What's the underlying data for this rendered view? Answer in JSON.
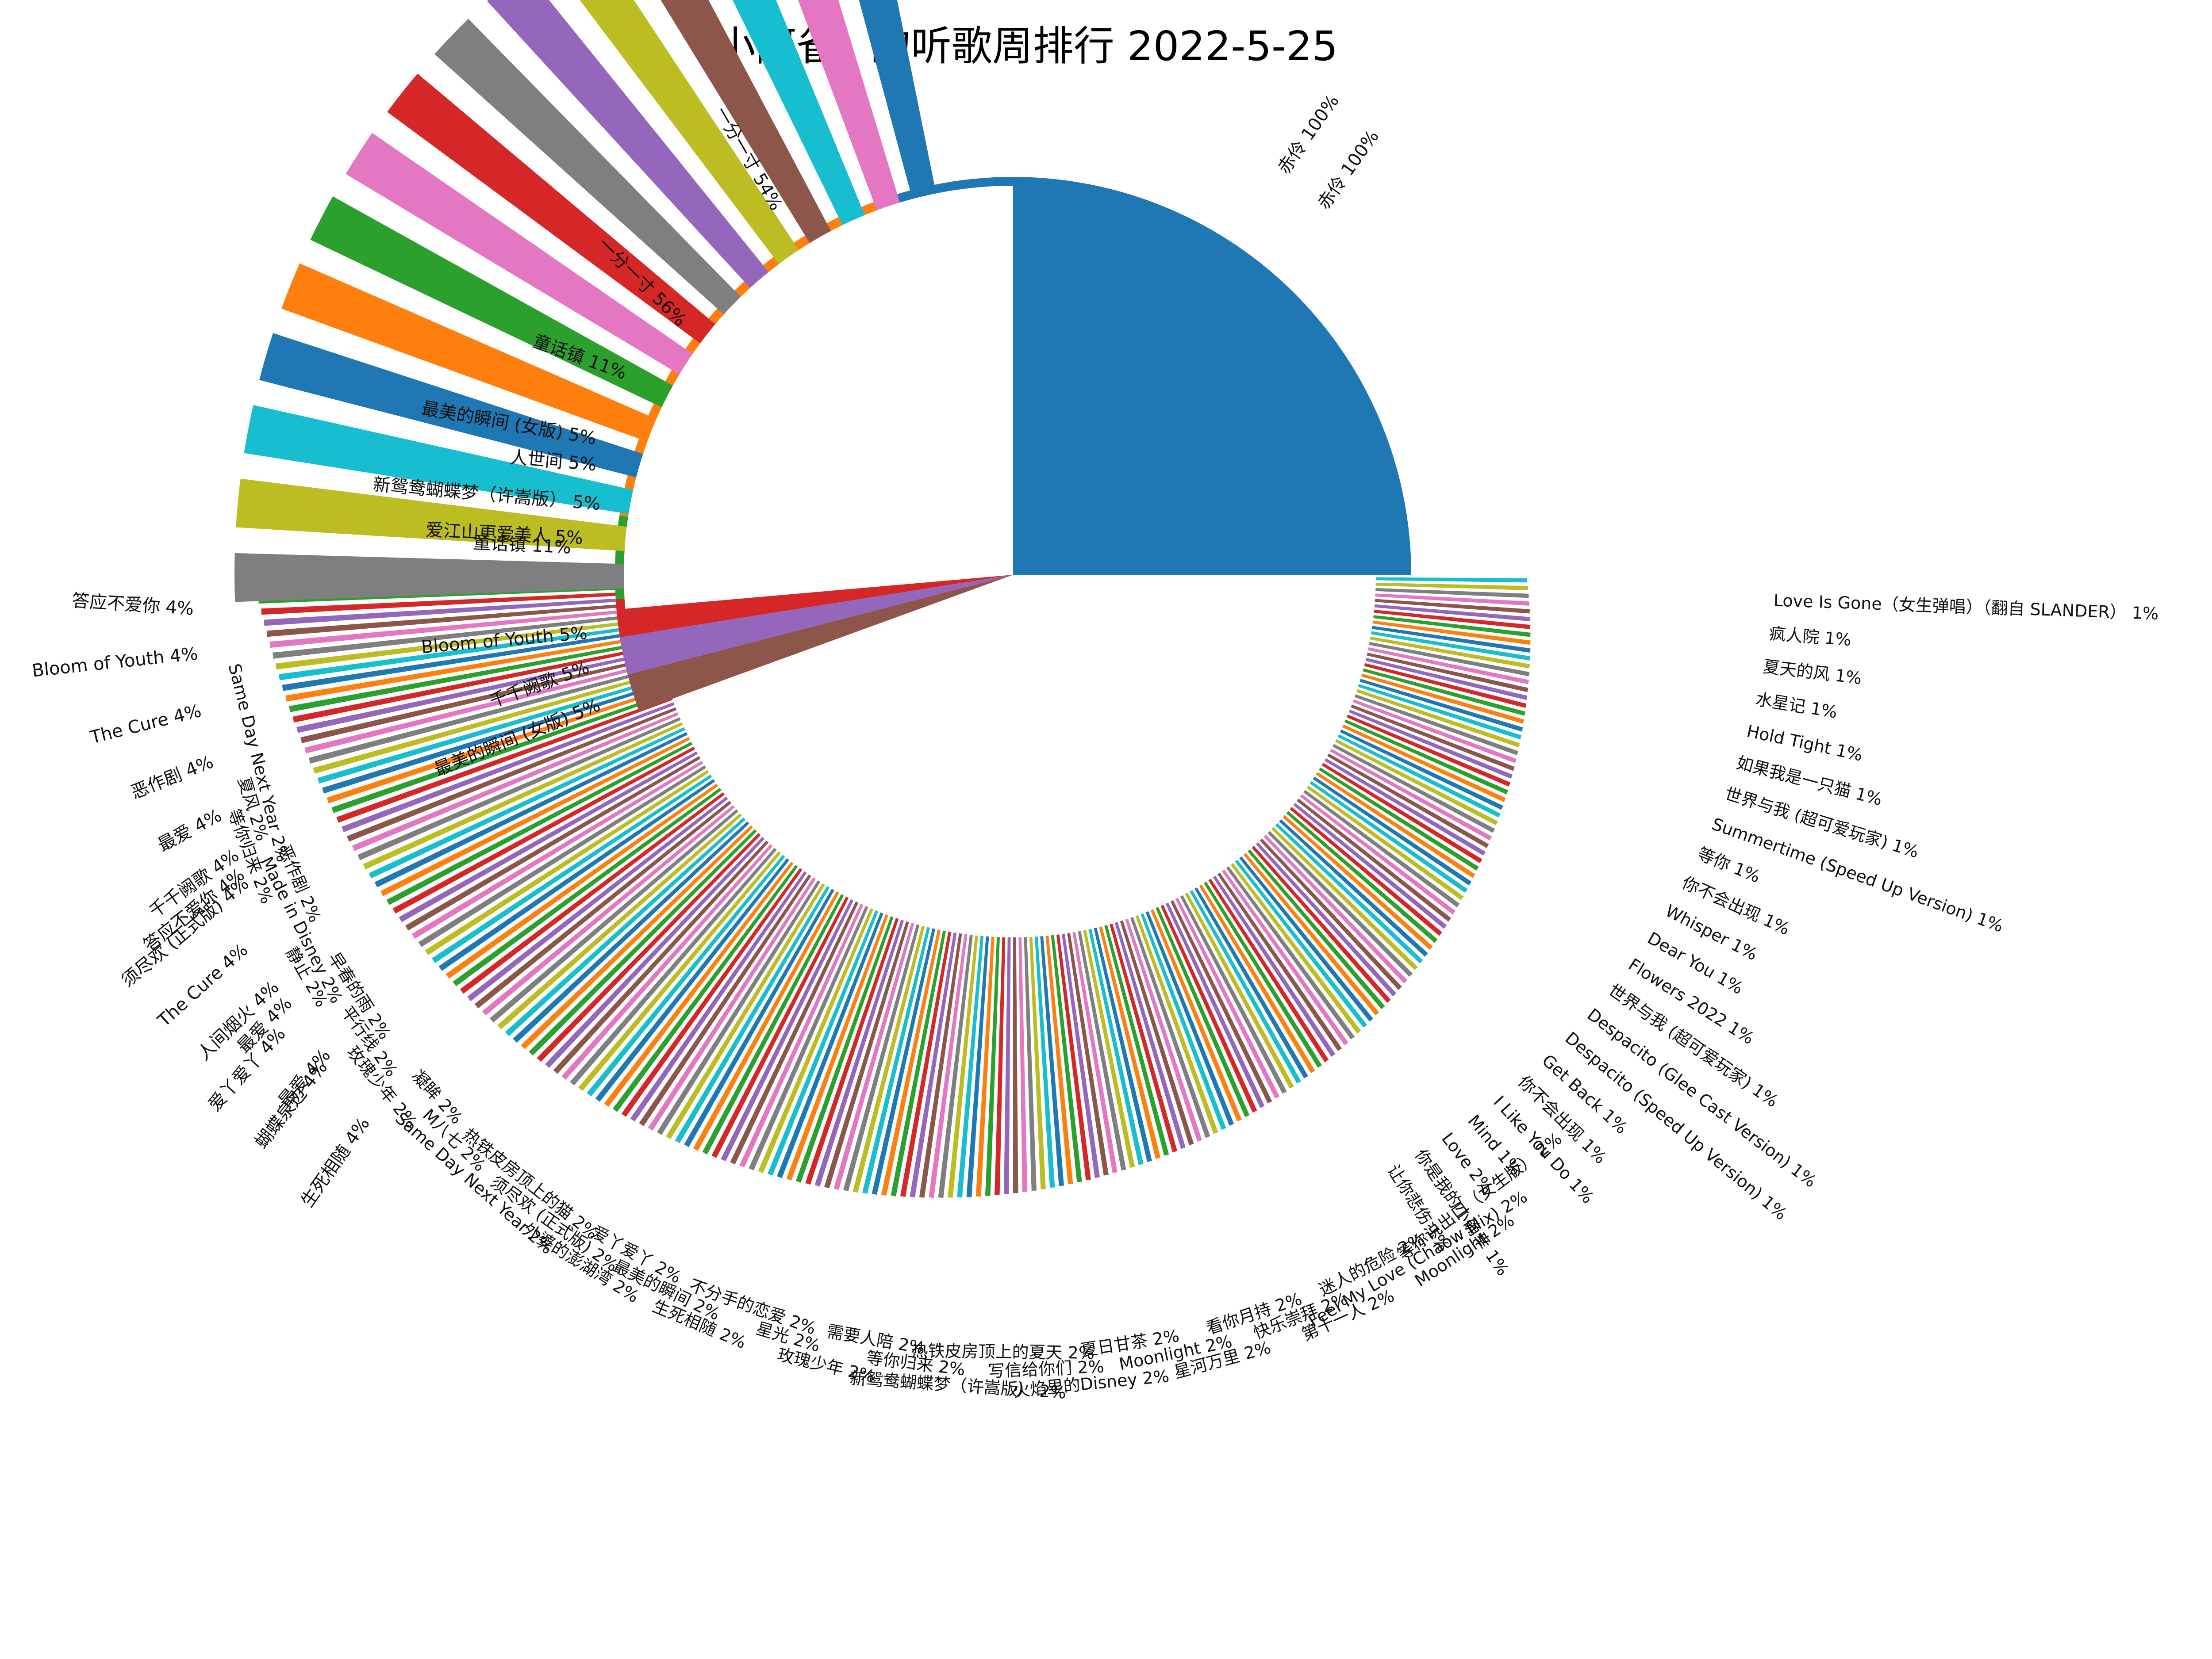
{
  "chart_data": {
    "type": "pie",
    "title": "小阿雀_ 的听歌周排行 2022-5-25",
    "note_layout": "two overlapping pies sharing a center; upper wedges show top songs, lower half is a dense fan of many small wedges",
    "top_wedges": [
      {
        "label": "赤伶 100%",
        "value": 100,
        "color": "#1f77b4"
      },
      {
        "label": "一分一寸 56%",
        "value": 56,
        "color": "#ff7f0e"
      },
      {
        "label": "童话镇 11%",
        "value": 11,
        "color": "#2ca02c"
      },
      {
        "label": "最美的瞬间 (女版) 5%",
        "value": 5,
        "color": "#d62728"
      },
      {
        "label": "人世间 5%",
        "value": 5,
        "color": "#9467bd"
      },
      {
        "label": "新鸳鸯蝴蝶梦（许嵩版） 5%",
        "value": 5,
        "color": "#8c564b"
      }
    ],
    "outer_labels_top": [
      "赤伶 100%",
      "赤伶 100%",
      "一分一寸 54%",
      "一分一寸 56%",
      "童话镇 11%",
      "最美的瞬间 (女版) 5%",
      "人世间 5%",
      "新鸳鸯蝴蝶梦（许嵩版） 5%",
      "爱江山更爱美人 5%",
      "童话镇 11%",
      "Bloom of Youth 5%",
      "千千阙歌 5%",
      "最美的瞬间 (女版) 5%"
    ],
    "left_exploded_wedges": [
      {
        "label": "答应不爱你 4%",
        "value": 4,
        "color": "#7f7f7f"
      },
      {
        "label": "Bloom of Youth 4%",
        "value": 4,
        "color": "#bcbd22"
      },
      {
        "label": "The Cure 4%",
        "value": 4,
        "color": "#17becf"
      },
      {
        "label": "恶作剧 4%",
        "value": 4,
        "color": "#1f77b4"
      },
      {
        "label": "最爱 4%",
        "value": 4,
        "color": "#ff7f0e"
      },
      {
        "label": "千千阙歌 4%",
        "value": 4,
        "color": "#2ca02c"
      },
      {
        "label": "答应不爱你 4%",
        "value": 4,
        "color": "#e377c2"
      },
      {
        "label": "须尽欢 (正式版) 4%",
        "value": 4,
        "color": "#d62728"
      },
      {
        "label": "The Cure 4%",
        "value": 4,
        "color": "#7f7f7f"
      },
      {
        "label": "人间烟火 4%",
        "value": 4,
        "color": "#9467bd"
      },
      {
        "label": "最爱 4%",
        "value": 4,
        "color": "#bcbd22"
      },
      {
        "label": "爱丫爱丫 4%",
        "value": 4,
        "color": "#8c564b"
      },
      {
        "label": "最爱 4%",
        "value": 4,
        "color": "#17becf"
      },
      {
        "label": "蝴蝶泉边 4%",
        "value": 4,
        "color": "#e377c2"
      },
      {
        "label": "生死相随 4%",
        "value": 4,
        "color": "#1f77b4"
      }
    ],
    "fan_labels_bottom": [
      "Same Day Next Year 2%",
      "夏风 2%",
      "等你归来 2%",
      "恶作剧 2%",
      "Made in Disney 2%",
      "静止 2%",
      "早春的雨 2%",
      "平行线 2%",
      "玫瑰少年 2%",
      "凝眸 2%",
      "M八七 2%",
      "Same Day Next Year 2%",
      "热铁皮房顶上的猫 2%",
      "须尽欢 (正式版) 2%",
      "外婆的澎湖湾 2%",
      "爱丫爱丫 2%",
      "最美的瞬间 2%",
      "生死相随 2%",
      "不分手的恋爱 2%",
      "星光 2%",
      "玫瑰少年 2%",
      "需要人陪 2%",
      "等你归来 2%",
      "新鸳鸯蝴蝶梦（许嵩版） 2%",
      "热铁皮房顶上的夏天 2%",
      "写信给你们 2%",
      "火焰里的Disney 2%",
      "夏日甘茶 2%",
      "Moonlight 2%",
      "星河万里 2%",
      "看你月持 2%",
      "快乐崇拜 2%",
      "第十一人 2%",
      "迷人的危险 2%",
      "Feel My Love (Chaow Mix) 2%",
      "Moonlight 2%",
      "等你说出口（女生版） 2%"
    ],
    "fan_labels_right": [
      "Love Is Gone（女生弹唱）（翻自 SLANDER） 1%",
      "疯人院 1%",
      "夏天的风 1%",
      "水星记 1%",
      "Hold Tight 1%",
      "如果我是一只猫 1%",
      "世界与我 (超可爱玩家) 1%",
      "Summertime (Speed Up Version) 1%",
      "等你 1%",
      "你不会出现 1%",
      "Whisper 1%",
      "Dear You 1%",
      "Flowers 2022 1%",
      "世界与我 (超可爱玩家) 1%",
      "Despacito (Glee Cast Version) 1%",
      "Despacito (Speed Up Version) 1%",
      "Get Back 1%",
      "你不会出现 1%",
      "I Like You Do 1%",
      "Mind 1%",
      "Love 2%",
      "你是我的小确幸 1%",
      "让你悲伤 1%"
    ],
    "fan_wedge_count": 210,
    "fan_palette": [
      "#1f77b4",
      "#ff7f0e",
      "#2ca02c",
      "#d62728",
      "#9467bd",
      "#8c564b",
      "#e377c2",
      "#7f7f7f",
      "#bcbd22",
      "#17becf"
    ],
    "top_pie_start_deg": 0,
    "fan_start_deg": 0,
    "fan_end_deg": 180,
    "grid": false,
    "legend": "none"
  }
}
